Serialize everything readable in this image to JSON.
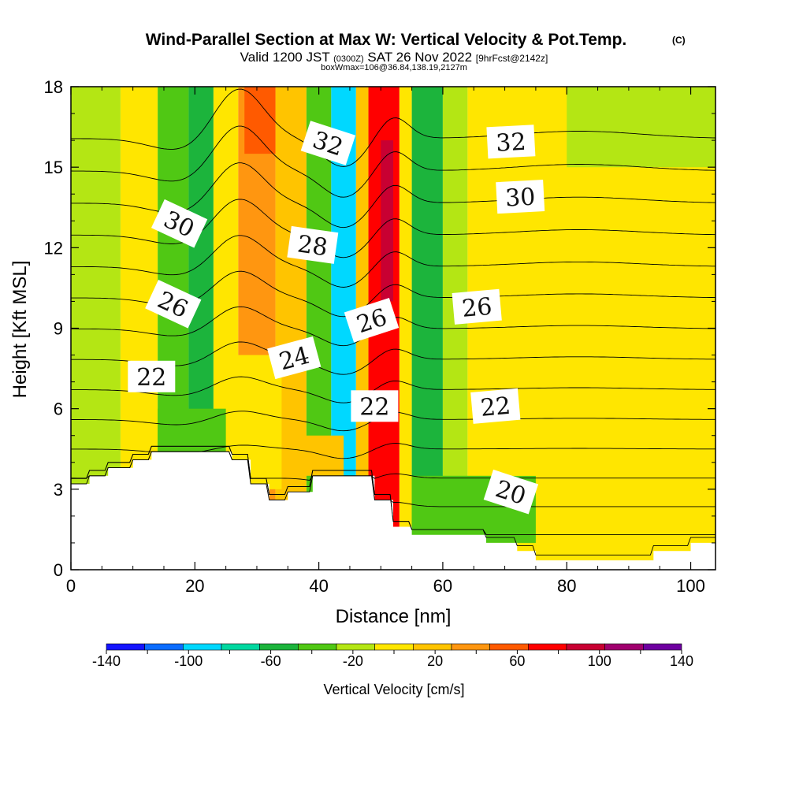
{
  "chart_data": {
    "type": "heatmap",
    "title": "Wind-Parallel Section at Max W: Vertical Velocity & Pot.Temp.",
    "title_mark": "(C)",
    "subtitle_main": "Valid 1200 JST",
    "subtitle_utc": "(0300Z)",
    "subtitle_date": "SAT 26 Nov 2022",
    "subtitle_fcst": "[9hrFcst@2142z]",
    "box_info": "boxWmax=106@36.84,138.19,2127m",
    "xlabel": "Distance [nm]",
    "ylabel": "Height [Kft MSL]",
    "xlim": [
      0,
      104
    ],
    "ylim": [
      0,
      18
    ],
    "x_ticks": [
      0,
      20,
      40,
      60,
      80,
      100
    ],
    "x_tick_labels": [
      "0",
      "20",
      "40",
      "60",
      "80",
      "100"
    ],
    "y_ticks": [
      0,
      3,
      6,
      9,
      12,
      15,
      18
    ],
    "y_tick_labels": [
      "0",
      "3",
      "6",
      "9",
      "12",
      "15",
      "18"
    ],
    "colorbar": {
      "label": "Vertical Velocity [cm/s]",
      "levels": [
        -140,
        -120,
        -100,
        -80,
        -60,
        -40,
        -20,
        0,
        20,
        40,
        60,
        80,
        100,
        120,
        140
      ],
      "tick_values": [
        -140,
        -100,
        -60,
        -20,
        20,
        60,
        100,
        140
      ],
      "tick_labels": [
        "-140",
        "-100",
        "-60",
        "-20",
        "20",
        "60",
        "100",
        "140"
      ],
      "colors": [
        "#1414ff",
        "#0a6cff",
        "#00d8ff",
        "#00d8a0",
        "#1cb43c",
        "#50c814",
        "#b4e614",
        "#ffe600",
        "#ffc400",
        "#ff9610",
        "#ff5a00",
        "#ff0000",
        "#c80032",
        "#a0006e",
        "#6e00a0"
      ]
    },
    "w_bands": [
      {
        "x0": 0,
        "x1": 8,
        "w": -10
      },
      {
        "x0": 8,
        "x1": 14,
        "w": 10
      },
      {
        "x0": 14,
        "x1": 19,
        "w": -30
      },
      {
        "x0": 19,
        "x1": 23,
        "w": -50
      },
      {
        "x0": 23,
        "x1": 27,
        "w": 10
      },
      {
        "x0": 27,
        "x1": 33,
        "w": 50
      },
      {
        "x0": 33,
        "x1": 38,
        "w": 30
      },
      {
        "x0": 38,
        "x1": 42,
        "w": -30
      },
      {
        "x0": 42,
        "x1": 46,
        "w": -90
      },
      {
        "x0": 46,
        "x1": 48,
        "w": 30
      },
      {
        "x0": 48,
        "x1": 53,
        "w": 90
      },
      {
        "x0": 53,
        "x1": 55,
        "w": 10
      },
      {
        "x0": 55,
        "x1": 60,
        "w": -50
      },
      {
        "x0": 60,
        "x1": 64,
        "w": -10
      },
      {
        "x0": 64,
        "x1": 104,
        "w": 10
      }
    ],
    "w_patches": [
      {
        "x0": 14,
        "x1": 25,
        "y0": 3.5,
        "y1": 6,
        "w": -30
      },
      {
        "x0": 26,
        "x1": 34,
        "y0": 3,
        "y1": 8,
        "w": 10
      },
      {
        "x0": 37,
        "x1": 44,
        "y0": 3.5,
        "y1": 5,
        "w": 30
      },
      {
        "x0": 55,
        "x1": 75,
        "y0": 1,
        "y1": 3.5,
        "w": -30
      },
      {
        "x0": 70,
        "x1": 80,
        "y0": 3.5,
        "y1": 12,
        "w": 10
      },
      {
        "x0": 80,
        "x1": 104,
        "y0": 5,
        "y1": 13,
        "w": 10
      },
      {
        "x0": 80,
        "x1": 104,
        "y0": 0.3,
        "y1": 3,
        "w": 10
      },
      {
        "x0": 80,
        "x1": 104,
        "y0": 15,
        "y1": 18,
        "w": -10
      },
      {
        "x0": 28,
        "x1": 33,
        "y0": 15.5,
        "y1": 18,
        "w": 70
      },
      {
        "x0": 50,
        "x1": 52,
        "y0": 10,
        "y1": 16,
        "w": 110
      }
    ],
    "terrain": [
      [
        0,
        3.2
      ],
      [
        3,
        3.2
      ],
      [
        3,
        3.5
      ],
      [
        6,
        3.5
      ],
      [
        6,
        3.8
      ],
      [
        10,
        3.8
      ],
      [
        10,
        4.1
      ],
      [
        13,
        4.1
      ],
      [
        13,
        4.4
      ],
      [
        26,
        4.4
      ],
      [
        26,
        4.1
      ],
      [
        29,
        4.1
      ],
      [
        29,
        3.2
      ],
      [
        32,
        3.2
      ],
      [
        32,
        2.6
      ],
      [
        35,
        2.6
      ],
      [
        35,
        2.9
      ],
      [
        39,
        2.9
      ],
      [
        39,
        3.5
      ],
      [
        49,
        3.5
      ],
      [
        49,
        2.6
      ],
      [
        52,
        2.6
      ],
      [
        52,
        1.6
      ],
      [
        55,
        1.6
      ],
      [
        55,
        1.3
      ],
      [
        67,
        1.3
      ],
      [
        67,
        1.0
      ],
      [
        72,
        1.0
      ],
      [
        72,
        0.7
      ],
      [
        75,
        0.7
      ],
      [
        75,
        0.35
      ],
      [
        94,
        0.35
      ],
      [
        94,
        0.7
      ],
      [
        100,
        0.7
      ],
      [
        100,
        1.0
      ],
      [
        104,
        1.0
      ],
      [
        104,
        0
      ],
      [
        0,
        0
      ]
    ],
    "theta_levels": [
      20,
      21,
      22,
      23,
      24,
      25,
      26,
      27,
      28,
      29,
      30,
      31,
      32,
      33,
      34
    ],
    "theta_labels": [
      {
        "text": "32",
        "x": 41.5,
        "y": 15.9,
        "angle": 18
      },
      {
        "text": "32",
        "x": 71,
        "y": 15.95,
        "angle": -3
      },
      {
        "text": "30",
        "x": 17.5,
        "y": 12.9,
        "angle": 25
      },
      {
        "text": "30",
        "x": 72.5,
        "y": 13.9,
        "angle": -3
      },
      {
        "text": "28",
        "x": 39,
        "y": 12.1,
        "angle": 8
      },
      {
        "text": "26",
        "x": 16.5,
        "y": 9.9,
        "angle": 25
      },
      {
        "text": "26",
        "x": 48.5,
        "y": 9.3,
        "angle": -18
      },
      {
        "text": "26",
        "x": 65.5,
        "y": 9.8,
        "angle": -5
      },
      {
        "text": "24",
        "x": 36,
        "y": 7.9,
        "angle": -15
      },
      {
        "text": "22",
        "x": 13,
        "y": 7.2,
        "angle": 0
      },
      {
        "text": "22",
        "x": 49,
        "y": 6.1,
        "angle": 0
      },
      {
        "text": "22",
        "x": 68.5,
        "y": 6.1,
        "angle": -5
      },
      {
        "text": "20",
        "x": 71,
        "y": 2.9,
        "angle": 18
      }
    ]
  }
}
